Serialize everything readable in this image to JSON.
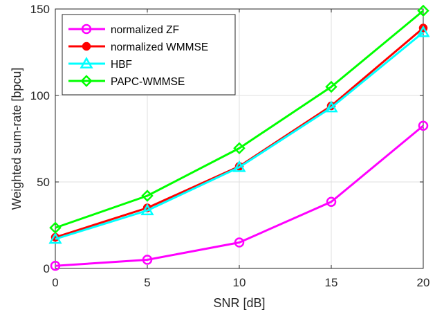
{
  "chart_data": {
    "type": "line",
    "title": "",
    "xlabel": "SNR [dB]",
    "ylabel": "Weighted sum-rate [bpcu]",
    "x": [
      0,
      5,
      10,
      15,
      20
    ],
    "xlim": [
      0,
      20
    ],
    "ylim": [
      0,
      150
    ],
    "xticks": [
      0,
      5,
      10,
      15,
      20
    ],
    "yticks": [
      0,
      50,
      100,
      150
    ],
    "grid": true,
    "legend_position": "top-left",
    "series": [
      {
        "name": "normalized ZF",
        "values": [
          1.5,
          5,
          15,
          38.5,
          82.5
        ],
        "color": "#FF00FF",
        "marker": "circle"
      },
      {
        "name": "normalized WMMSE",
        "values": [
          18,
          35,
          59,
          94,
          139
        ],
        "color": "#FF0000",
        "marker": "filled-circle"
      },
      {
        "name": "HBF",
        "values": [
          17,
          33.5,
          58.5,
          93,
          136.5
        ],
        "color": "#00FFFF",
        "marker": "triangle"
      },
      {
        "name": "PAPC-WMMSE",
        "values": [
          23.5,
          42,
          69.5,
          105,
          149
        ],
        "color": "#00FF00",
        "marker": "diamond"
      }
    ]
  }
}
